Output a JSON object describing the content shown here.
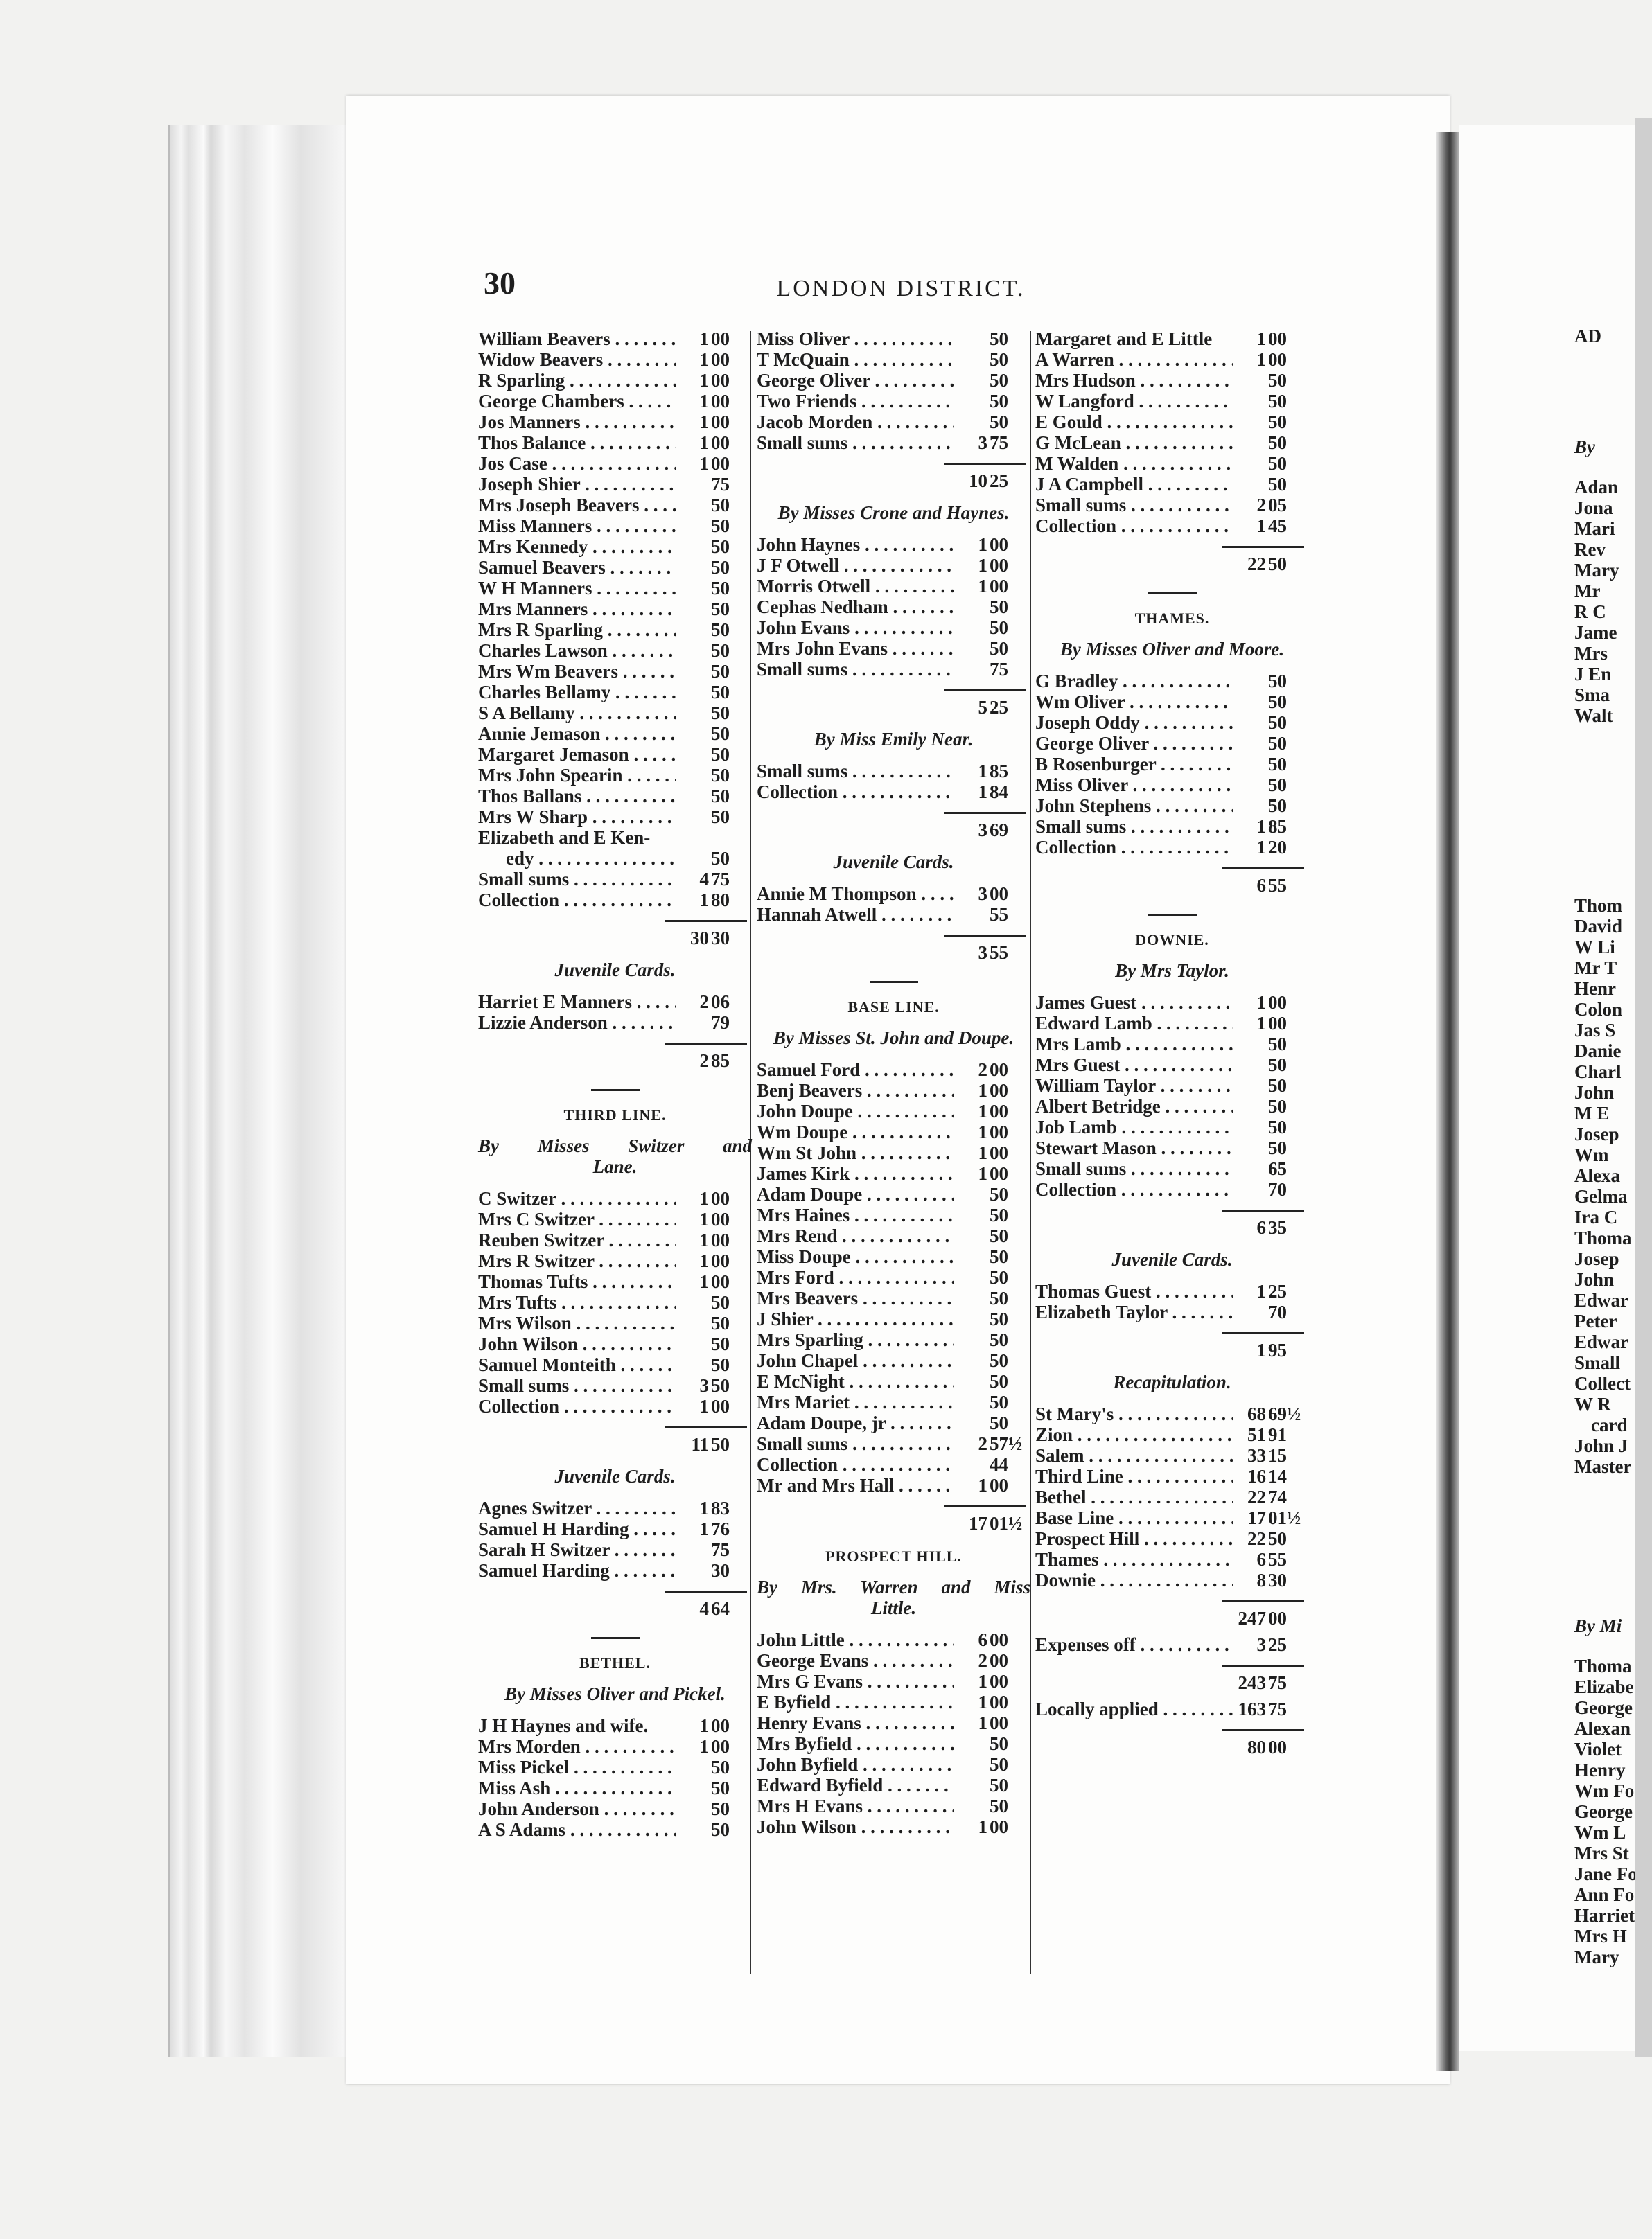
{
  "page_number": "30",
  "running_title": "LONDON DISTRICT.",
  "columns": [
    {
      "blocks": [
        {
          "type": "row",
          "name": "William Beavers",
          "amount": "1 00"
        },
        {
          "type": "row",
          "name": "Widow Beavers",
          "amount": "1 00"
        },
        {
          "type": "row",
          "name": "R Sparling",
          "amount": "1 00"
        },
        {
          "type": "row",
          "name": "George Chambers",
          "amount": "1 00"
        },
        {
          "type": "row",
          "name": "Jos Manners",
          "amount": "1 00"
        },
        {
          "type": "row",
          "name": "Thos Balance",
          "amount": "1 00"
        },
        {
          "type": "row",
          "name": "Jos Case",
          "amount": "1 00"
        },
        {
          "type": "row",
          "name": "Joseph Shier",
          "amount": "75"
        },
        {
          "type": "row",
          "name": "Mrs Joseph Beavers",
          "amount": "50"
        },
        {
          "type": "row",
          "name": "Miss Manners",
          "amount": "50"
        },
        {
          "type": "row",
          "name": "Mrs Kennedy",
          "amount": "50"
        },
        {
          "type": "row",
          "name": "Samuel Beavers",
          "amount": "50"
        },
        {
          "type": "row",
          "name": "W H Manners",
          "amount": "50"
        },
        {
          "type": "row",
          "name": "Mrs Manners",
          "amount": "50"
        },
        {
          "type": "row",
          "name": "Mrs R Sparling",
          "amount": "50"
        },
        {
          "type": "row",
          "name": "Charles Lawson",
          "amount": "50"
        },
        {
          "type": "row",
          "name": "Mrs Wm Beavers",
          "amount": "50"
        },
        {
          "type": "row",
          "name": "Charles Bellamy",
          "amount": "50"
        },
        {
          "type": "row",
          "name": "S A Bellamy",
          "amount": "50"
        },
        {
          "type": "row",
          "name": "Annie Jemason",
          "amount": "50"
        },
        {
          "type": "row",
          "name": "Margaret Jemason",
          "amount": "50"
        },
        {
          "type": "row",
          "name": "Mrs John Spearin",
          "amount": "50"
        },
        {
          "type": "row",
          "name": "Thos Ballans",
          "amount": "50"
        },
        {
          "type": "row",
          "name": "Mrs W Sharp",
          "amount": "50"
        },
        {
          "type": "row2",
          "name": "Elizabeth and E Ken-",
          "name2": "edy",
          "amount": "50"
        },
        {
          "type": "row",
          "name": "Small sums",
          "amount": "4 75"
        },
        {
          "type": "row",
          "name": "Collection",
          "amount": "1 80"
        },
        {
          "type": "total",
          "amount": "30 30"
        },
        {
          "type": "sub",
          "text": "Juvenile Cards."
        },
        {
          "type": "row",
          "name": "Harriet E Manners",
          "amount": "2 06"
        },
        {
          "type": "row",
          "name": "Lizzie Anderson",
          "amount": "79"
        },
        {
          "type": "total",
          "amount": "2 85"
        },
        {
          "type": "sep"
        },
        {
          "type": "head",
          "text": "THIRD LINE."
        },
        {
          "type": "sub2",
          "text": "By Misses Switzer and",
          "text2": "Lane."
        },
        {
          "type": "row",
          "name": "C Switzer",
          "amount": "1 00"
        },
        {
          "type": "row",
          "name": "Mrs C Switzer",
          "amount": "1 00"
        },
        {
          "type": "row",
          "name": "Reuben Switzer",
          "amount": "1 00"
        },
        {
          "type": "row",
          "name": "Mrs R Switzer",
          "amount": "1 00"
        },
        {
          "type": "row",
          "name": "Thomas Tufts",
          "amount": "1 00"
        },
        {
          "type": "row",
          "name": "Mrs Tufts",
          "amount": "50"
        },
        {
          "type": "row",
          "name": "Mrs Wilson",
          "amount": "50"
        },
        {
          "type": "row",
          "name": "John Wilson",
          "amount": "50"
        },
        {
          "type": "row",
          "name": "Samuel Monteith",
          "amount": "50"
        },
        {
          "type": "row",
          "name": "Small sums",
          "amount": "3 50"
        },
        {
          "type": "row",
          "name": "Collection",
          "amount": "1 00"
        },
        {
          "type": "total",
          "amount": "11 50"
        },
        {
          "type": "sub",
          "text": "Juvenile Cards."
        },
        {
          "type": "row",
          "name": "Agnes Switzer",
          "amount": "1 83"
        },
        {
          "type": "row",
          "name": "Samuel H Harding",
          "amount": "1 76"
        },
        {
          "type": "row",
          "name": "Sarah H Switzer",
          "amount": "75"
        },
        {
          "type": "row",
          "name": "Samuel Harding",
          "amount": "30"
        },
        {
          "type": "total",
          "amount": "4 64"
        },
        {
          "type": "sep"
        },
        {
          "type": "head",
          "text": "BETHEL."
        },
        {
          "type": "sub",
          "text": "By Misses Oliver and Pickel."
        },
        {
          "type": "row",
          "name": "J H Haynes and wife.",
          "amount": "1 00",
          "plain": true
        },
        {
          "type": "row",
          "name": "Mrs Morden",
          "amount": "1 00"
        },
        {
          "type": "row",
          "name": "Miss Pickel",
          "amount": "50"
        },
        {
          "type": "row",
          "name": "Miss Ash",
          "amount": "50"
        },
        {
          "type": "row",
          "name": "John Anderson",
          "amount": "50"
        },
        {
          "type": "row",
          "name": "A S Adams",
          "amount": "50"
        }
      ]
    },
    {
      "blocks": [
        {
          "type": "row",
          "name": "Miss Oliver",
          "amount": "50"
        },
        {
          "type": "row",
          "name": "T McQuain",
          "amount": "50"
        },
        {
          "type": "row",
          "name": "George Oliver",
          "amount": "50"
        },
        {
          "type": "row",
          "name": "Two Friends",
          "amount": "50"
        },
        {
          "type": "row",
          "name": "Jacob Morden",
          "amount": "50"
        },
        {
          "type": "row",
          "name": "Small sums",
          "amount": "3 75"
        },
        {
          "type": "total",
          "amount": "10 25"
        },
        {
          "type": "sub",
          "text": "By Misses Crone and Haynes."
        },
        {
          "type": "row",
          "name": "John Haynes",
          "amount": "1 00"
        },
        {
          "type": "row",
          "name": "J F Otwell",
          "amount": "1 00"
        },
        {
          "type": "row",
          "name": "Morris Otwell",
          "amount": "1 00"
        },
        {
          "type": "row",
          "name": "Cephas Nedham",
          "amount": "50"
        },
        {
          "type": "row",
          "name": "John Evans",
          "amount": "50"
        },
        {
          "type": "row",
          "name": "Mrs John Evans",
          "amount": "50"
        },
        {
          "type": "row",
          "name": "Small sums",
          "amount": "75"
        },
        {
          "type": "total",
          "amount": "5 25"
        },
        {
          "type": "sub",
          "text": "By Miss Emily Near."
        },
        {
          "type": "row",
          "name": "Small sums",
          "amount": "1 85"
        },
        {
          "type": "row",
          "name": "Collection",
          "amount": "1 84"
        },
        {
          "type": "total",
          "amount": "3 69"
        },
        {
          "type": "sub",
          "text": "Juvenile Cards."
        },
        {
          "type": "row",
          "name": "Annie M Thompson",
          "amount": "3 00"
        },
        {
          "type": "row",
          "name": "Hannah Atwell",
          "amount": "55"
        },
        {
          "type": "total",
          "amount": "3 55"
        },
        {
          "type": "sep"
        },
        {
          "type": "head",
          "text": "BASE LINE."
        },
        {
          "type": "sub",
          "text": "By Misses St. John and Doupe."
        },
        {
          "type": "row",
          "name": "Samuel Ford",
          "amount": "2 00"
        },
        {
          "type": "row",
          "name": "Benj Beavers",
          "amount": "1 00"
        },
        {
          "type": "row",
          "name": "John Doupe",
          "amount": "1 00"
        },
        {
          "type": "row",
          "name": "Wm Doupe",
          "amount": "1 00"
        },
        {
          "type": "row",
          "name": "Wm St John",
          "amount": "1 00"
        },
        {
          "type": "row",
          "name": "James Kirk",
          "amount": "1 00"
        },
        {
          "type": "row",
          "name": "Adam Doupe",
          "amount": "50"
        },
        {
          "type": "row",
          "name": "Mrs Haines",
          "amount": "50"
        },
        {
          "type": "row",
          "name": "Mrs Rend",
          "amount": "50"
        },
        {
          "type": "row",
          "name": "Miss Doupe",
          "amount": "50"
        },
        {
          "type": "row",
          "name": "Mrs Ford",
          "amount": "50"
        },
        {
          "type": "row",
          "name": "Mrs Beavers",
          "amount": "50"
        },
        {
          "type": "row",
          "name": "J Shier",
          "amount": "50"
        },
        {
          "type": "row",
          "name": "Mrs Sparling",
          "amount": "50"
        },
        {
          "type": "row",
          "name": "John Chapel",
          "amount": "50"
        },
        {
          "type": "row",
          "name": "E McNight",
          "amount": "50"
        },
        {
          "type": "row",
          "name": "Mrs Mariet",
          "amount": "50"
        },
        {
          "type": "row",
          "name": "Adam Doupe, jr",
          "amount": "50"
        },
        {
          "type": "row",
          "name": "Small sums",
          "amount": "2 57½"
        },
        {
          "type": "row",
          "name": "Collection",
          "amount": "44"
        },
        {
          "type": "row",
          "name": "Mr and Mrs Hall",
          "amount": "1 00"
        },
        {
          "type": "total",
          "amount": "17 01½"
        },
        {
          "type": "head",
          "text": "PROSPECT HILL."
        },
        {
          "type": "sub2",
          "text": "By Mrs. Warren and Miss",
          "text2": "Little."
        },
        {
          "type": "row",
          "name": "John Little",
          "amount": "6 00"
        },
        {
          "type": "row",
          "name": "George Evans",
          "amount": "2 00"
        },
        {
          "type": "row",
          "name": "Mrs G Evans",
          "amount": "1 00"
        },
        {
          "type": "row",
          "name": "E Byfield",
          "amount": "1 00"
        },
        {
          "type": "row",
          "name": "Henry Evans",
          "amount": "1 00"
        },
        {
          "type": "row",
          "name": "Mrs Byfield",
          "amount": "50"
        },
        {
          "type": "row",
          "name": "John Byfield",
          "amount": "50"
        },
        {
          "type": "row",
          "name": "Edward Byfield",
          "amount": "50"
        },
        {
          "type": "row",
          "name": "Mrs H Evans",
          "amount": "50"
        },
        {
          "type": "row",
          "name": "John Wilson",
          "amount": "1 00"
        }
      ]
    },
    {
      "blocks": [
        {
          "type": "row",
          "name": "Margaret and E Little",
          "amount": "1 00",
          "plain": true
        },
        {
          "type": "row",
          "name": "A Warren",
          "amount": "1 00"
        },
        {
          "type": "row",
          "name": "Mrs Hudson",
          "amount": "50"
        },
        {
          "type": "row",
          "name": "W Langford",
          "amount": "50"
        },
        {
          "type": "row",
          "name": "E Gould",
          "amount": "50"
        },
        {
          "type": "row",
          "name": "G McLean",
          "amount": "50"
        },
        {
          "type": "row",
          "name": "M Walden",
          "amount": "50"
        },
        {
          "type": "row",
          "name": "J A Campbell",
          "amount": "50"
        },
        {
          "type": "row",
          "name": "Small sums",
          "amount": "2 05"
        },
        {
          "type": "row",
          "name": "Collection",
          "amount": "1 45"
        },
        {
          "type": "total",
          "amount": "22 50"
        },
        {
          "type": "sep"
        },
        {
          "type": "head",
          "text": "THAMES."
        },
        {
          "type": "sub",
          "text": "By Misses Oliver and Moore."
        },
        {
          "type": "row",
          "name": "G Bradley",
          "amount": "50"
        },
        {
          "type": "row",
          "name": "Wm Oliver",
          "amount": "50"
        },
        {
          "type": "row",
          "name": "Joseph Oddy",
          "amount": "50"
        },
        {
          "type": "row",
          "name": "George Oliver",
          "amount": "50"
        },
        {
          "type": "row",
          "name": "B Rosenburger",
          "amount": "50"
        },
        {
          "type": "row",
          "name": "Miss Oliver",
          "amount": "50"
        },
        {
          "type": "row",
          "name": "John Stephens",
          "amount": "50"
        },
        {
          "type": "row",
          "name": "Small sums",
          "amount": "1 85"
        },
        {
          "type": "row",
          "name": "Collection",
          "amount": "1 20"
        },
        {
          "type": "total",
          "amount": "6 55"
        },
        {
          "type": "sep"
        },
        {
          "type": "head",
          "text": "DOWNIE."
        },
        {
          "type": "sub",
          "text": "By Mrs Taylor."
        },
        {
          "type": "row",
          "name": "James Guest",
          "amount": "1 00"
        },
        {
          "type": "row",
          "name": "Edward Lamb",
          "amount": "1 00"
        },
        {
          "type": "row",
          "name": "Mrs Lamb",
          "amount": "50"
        },
        {
          "type": "row",
          "name": "Mrs Guest",
          "amount": "50"
        },
        {
          "type": "row",
          "name": "William Taylor",
          "amount": "50"
        },
        {
          "type": "row",
          "name": "Albert Betridge",
          "amount": "50"
        },
        {
          "type": "row",
          "name": "Job Lamb",
          "amount": "50"
        },
        {
          "type": "row",
          "name": "Stewart Mason",
          "amount": "50"
        },
        {
          "type": "row",
          "name": "Small sums",
          "amount": "65"
        },
        {
          "type": "row",
          "name": "Collection",
          "amount": "70"
        },
        {
          "type": "total",
          "amount": "6 35"
        },
        {
          "type": "sub",
          "text": "Juvenile Cards."
        },
        {
          "type": "row",
          "name": "Thomas Guest",
          "amount": "1 25"
        },
        {
          "type": "row",
          "name": "Elizabeth Taylor",
          "amount": "70"
        },
        {
          "type": "total",
          "amount": "1 95"
        },
        {
          "type": "sub",
          "text": "Recapitulation."
        },
        {
          "type": "row",
          "name": "St Mary's",
          "amount": "68 69½"
        },
        {
          "type": "row",
          "name": "Zion",
          "amount": "51 91"
        },
        {
          "type": "row",
          "name": "Salem",
          "amount": "33 15"
        },
        {
          "type": "row",
          "name": "Third Line",
          "amount": "16 14"
        },
        {
          "type": "row",
          "name": "Bethel",
          "amount": "22 74"
        },
        {
          "type": "row",
          "name": "Base Line",
          "amount": "17 01½"
        },
        {
          "type": "row",
          "name": "Prospect Hill",
          "amount": "22 50"
        },
        {
          "type": "row",
          "name": "Thames",
          "amount": "6 55"
        },
        {
          "type": "row",
          "name": "Downie",
          "amount": "8 30"
        },
        {
          "type": "total",
          "amount": "247 00"
        },
        {
          "type": "row",
          "name": "Expenses off",
          "amount": "3 25"
        },
        {
          "type": "total",
          "amount": "243 75"
        },
        {
          "type": "row",
          "name": "Locally applied",
          "amount": "163 75"
        },
        {
          "type": "total",
          "amount": "80 00"
        }
      ]
    }
  ],
  "facing_page_fragments": {
    "header": "AD",
    "sub1": "By",
    "block1": [
      "Adan",
      "Jona",
      "Mari",
      "Rev",
      "Mary",
      "Mr",
      "R C",
      "Jame",
      "Mrs",
      "J En",
      "Sma",
      "Walt"
    ],
    "block2": [
      "Thom",
      "David",
      "W Li",
      "Mr T",
      "Henr",
      "Colon",
      "Jas S",
      "Danie",
      "Charl",
      "John",
      "M E",
      "Josep",
      "Wm",
      "Alexa",
      "Gelma",
      "Ira C",
      "Thoma",
      "Josep",
      "John",
      "Edwar",
      "Peter",
      "Edwar",
      "Small",
      "Collect",
      "W R",
      "card",
      "John J",
      "Master"
    ],
    "sub2": "By Mi",
    "block3": [
      "Thoma",
      "Elizabe",
      "George",
      "Alexan",
      "Violet",
      "Henry",
      "Wm Fo",
      "George",
      "Wm L",
      "Mrs St",
      "Jane Fo",
      "Ann Fo",
      "Harriet",
      "Mrs H",
      "Mary"
    ]
  }
}
